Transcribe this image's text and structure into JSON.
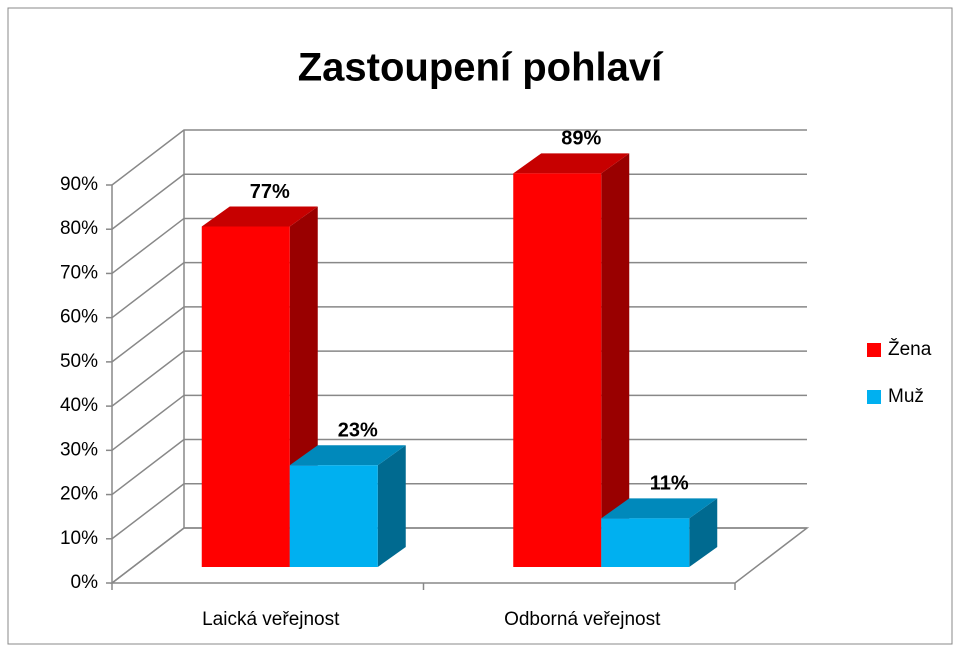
{
  "chart_data": {
    "type": "bar3d",
    "title": "Zastoupení pohlaví",
    "categories": [
      "Laická veřejnost",
      "Odborná veřejnost"
    ],
    "series": [
      {
        "name": "Žena",
        "color": "#ff0000",
        "values": [
          77,
          89
        ],
        "value_labels": [
          "77%",
          "89%"
        ]
      },
      {
        "name": "Muž",
        "color": "#00b0f0",
        "values": [
          23,
          11
        ],
        "value_labels": [
          "23%",
          "11%"
        ]
      }
    ],
    "ylim": [
      0,
      90
    ],
    "yticks": [
      {
        "value": 0,
        "label": "0%"
      },
      {
        "value": 10,
        "label": "10%"
      },
      {
        "value": 20,
        "label": "20%"
      },
      {
        "value": 30,
        "label": "30%"
      },
      {
        "value": 40,
        "label": "40%"
      },
      {
        "value": 50,
        "label": "50%"
      },
      {
        "value": 60,
        "label": "60%"
      },
      {
        "value": 70,
        "label": "70%"
      },
      {
        "value": 80,
        "label": "80%"
      },
      {
        "value": 90,
        "label": "90%"
      }
    ],
    "grid": true,
    "legend": "right"
  }
}
